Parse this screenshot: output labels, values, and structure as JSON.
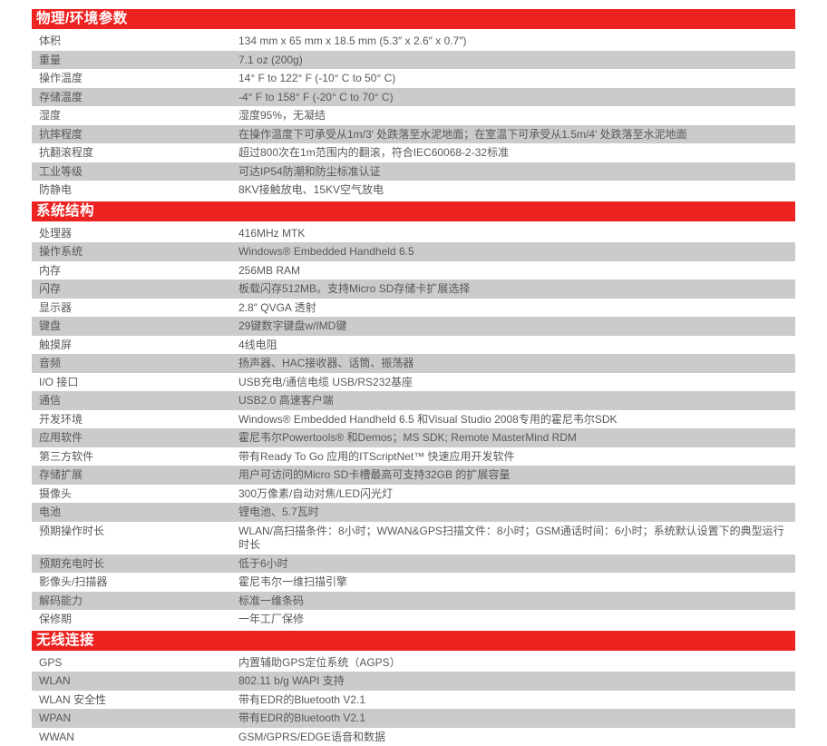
{
  "colors": {
    "accent_red": "#ed2321",
    "row_alt_gray": "#cbcbcb",
    "text": "#59595b",
    "header_text": "#ffffff"
  },
  "sections": [
    {
      "title": "物理/环境参数",
      "rows": [
        {
          "label": "体积",
          "value": "134 mm x 65 mm x 18.5 mm (5.3″ x 2.6″ x 0.7″)"
        },
        {
          "label": "重量",
          "value": "7.1 oz (200g)"
        },
        {
          "label": "操作温度",
          "value": "14° F to 122° F (-10° C to 50° C)"
        },
        {
          "label": "存储温度",
          "value": "-4° F to 158° F (-20° C to 70° C)"
        },
        {
          "label": "湿度",
          "value": "湿度95%，无凝结"
        },
        {
          "label": "抗摔程度",
          "value": "在操作温度下可承受从1m/3' 处跌落至水泥地面；在室温下可承受从1.5m/4' 处跌落至水泥地面"
        },
        {
          "label": "抗翻滚程度",
          "value": "超过800次在1m范围内的翻滚，符合IEC60068-2-32标准"
        },
        {
          "label": "工业等级",
          "value": "可达IP54防潮和防尘标准认证"
        },
        {
          "label": "防静电",
          "value": "8KV接触放电、15KV空气放电"
        }
      ]
    },
    {
      "title": "系统结构",
      "rows": [
        {
          "label": "处理器",
          "value": "416MHz MTK"
        },
        {
          "label": "操作系统",
          "value": "Windows® Embedded Handheld 6.5"
        },
        {
          "label": "内存",
          "value": "256MB RAM"
        },
        {
          "label": "闪存",
          "value": "板载闪存512MB。支持Micro SD存储卡扩展选择"
        },
        {
          "label": "显示器",
          "value": "2.8″ QVGA 透射"
        },
        {
          "label": "键盘",
          "value": "29键数字键盘w/IMD键"
        },
        {
          "label": "触摸屏",
          "value": "4线电阻"
        },
        {
          "label": "音频",
          "value": "扬声器、HAC接收器、话筒、振荡器"
        },
        {
          "label": "I/O 接口",
          "value": "USB充电/通信电缆 USB/RS232基座"
        },
        {
          "label": "通信",
          "value": "USB2.0 高速客户端"
        },
        {
          "label": "开发环境",
          "value": "Windows® Embedded Handheld 6.5 和Visual Studio 2008专用的霍尼韦尔SDK"
        },
        {
          "label": "应用软件",
          "value": "霍尼韦尔Powertools® 和Demos；MS SDK; Remote MasterMind RDM"
        },
        {
          "label": "第三方软件",
          "value": "带有Ready To Go 应用的ITScriptNet™ 快速应用开发软件"
        },
        {
          "label": "存储扩展",
          "value": "用户可访问的Micro SD卡槽最高可支持32GB 的扩展容量"
        },
        {
          "label": "摄像头",
          "value": "300万像素/自动对焦/LED闪光灯"
        },
        {
          "label": "电池",
          "value": "锂电池、5.7瓦时"
        },
        {
          "label": "预期操作时长",
          "value": "WLAN/高扫描条件：8小时；WWAN&GPS扫描文件：8小时；GSM通话时间：6小时；系统默认设置下的典型运行时长"
        },
        {
          "label": "预期充电时长",
          "value": "低于6小时"
        },
        {
          "label": "影像头/扫描器",
          "value": "霍尼韦尔一维扫描引擎"
        },
        {
          "label": "解码能力",
          "value": "标准一维条码"
        },
        {
          "label": "保修期",
          "value": "一年工厂保修"
        }
      ]
    },
    {
      "title": "无线连接",
      "rows": [
        {
          "label": "GPS",
          "value": "内置辅助GPS定位系统（AGPS）"
        },
        {
          "label": "WLAN",
          "value": "802.11 b/g WAPI 支持"
        },
        {
          "label": "WLAN 安全性",
          "value": "带有EDR的Bluetooth V2.1"
        },
        {
          "label": "WPAN",
          "value": "带有EDR的Bluetooth V2.1"
        },
        {
          "label": "WWAN",
          "value": "GSM/GPRS/EDGE语音和数据"
        }
      ]
    }
  ]
}
